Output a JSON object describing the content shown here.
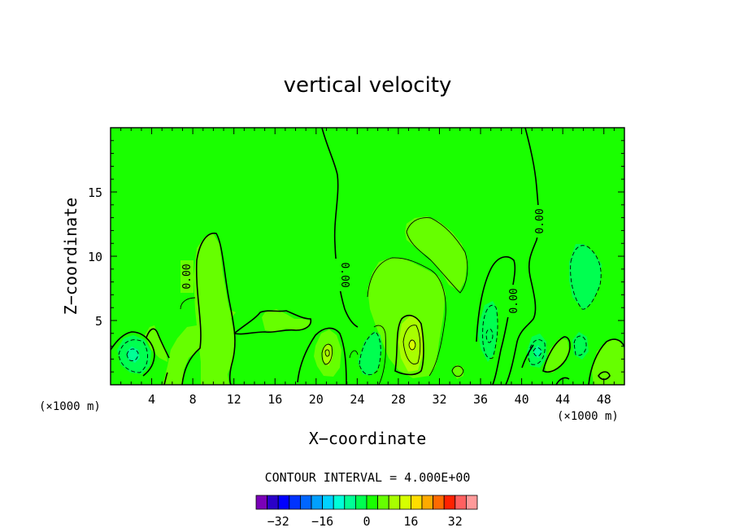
{
  "chart_data": {
    "type": "heatmap",
    "title": "vertical velocity",
    "xlabel": "X−coordinate",
    "ylabel": "Z−coordinate",
    "x_unit": "(×1000 m)",
    "y_unit": "(×1000 m)",
    "xlim": [
      0,
      50
    ],
    "ylim": [
      0,
      20
    ],
    "x_ticks": [
      4,
      8,
      12,
      16,
      20,
      24,
      28,
      32,
      36,
      40,
      44,
      48
    ],
    "y_ticks": [
      5,
      10,
      15
    ],
    "x_tick_labels": [
      "4",
      "8",
      "12",
      "16",
      "20",
      "24",
      "28",
      "32",
      "36",
      "40",
      "44",
      "48"
    ],
    "y_tick_labels": [
      "5",
      "10",
      "15"
    ],
    "contour_interval_text": "CONTOUR INTERVAL = 4.000E+00",
    "contour_interval": 4,
    "zero_contour_label": "0.00",
    "colorbar": {
      "levels": [
        -36,
        -32,
        -28,
        -24,
        -20,
        -16,
        -12,
        -8,
        -4,
        0,
        4,
        8,
        12,
        16,
        20,
        24,
        28,
        32,
        36
      ],
      "labels": [
        "−32",
        "−16",
        "0",
        "16",
        "32"
      ],
      "label_values": [
        -32,
        -16,
        0,
        16,
        32
      ],
      "colors": [
        "#7a00b8",
        "#2a00c8",
        "#0000ff",
        "#0033ff",
        "#0066ff",
        "#00a0ff",
        "#00d2ff",
        "#00ffd8",
        "#00ff96",
        "#00ff50",
        "#1aff00",
        "#66ff00",
        "#a8ff00",
        "#d6ff00",
        "#ffdd00",
        "#ffaa00",
        "#ff6a00",
        "#ff2200",
        "#ff6060",
        "#ff9a9a"
      ]
    },
    "background_color": "#1aff00",
    "features": [
      {
        "kind": "updraft",
        "x": 29.5,
        "z": 3.3,
        "peak": 16
      },
      {
        "kind": "updraft",
        "x": 21.2,
        "z": 2.7,
        "peak": 12
      },
      {
        "kind": "updraft",
        "x": 29.5,
        "z": 8.0,
        "peak": 4
      },
      {
        "kind": "updraft",
        "x": 30.5,
        "z": 11.0,
        "peak": 4
      },
      {
        "kind": "downdraft",
        "x": 46.0,
        "z": 8.5,
        "peak": -4
      },
      {
        "kind": "downdraft",
        "x": 25.0,
        "z": 2.5,
        "peak": -4
      },
      {
        "kind": "downdraft",
        "x": 2.2,
        "z": 2.5,
        "peak": -8
      },
      {
        "kind": "downdraft",
        "x": 37.3,
        "z": 3.8,
        "peak": -4
      },
      {
        "kind": "downdraft",
        "x": 42.0,
        "z": 2.5,
        "peak": -8
      },
      {
        "kind": "downdraft",
        "x": 45.5,
        "z": 3.0,
        "peak": -4
      }
    ]
  }
}
